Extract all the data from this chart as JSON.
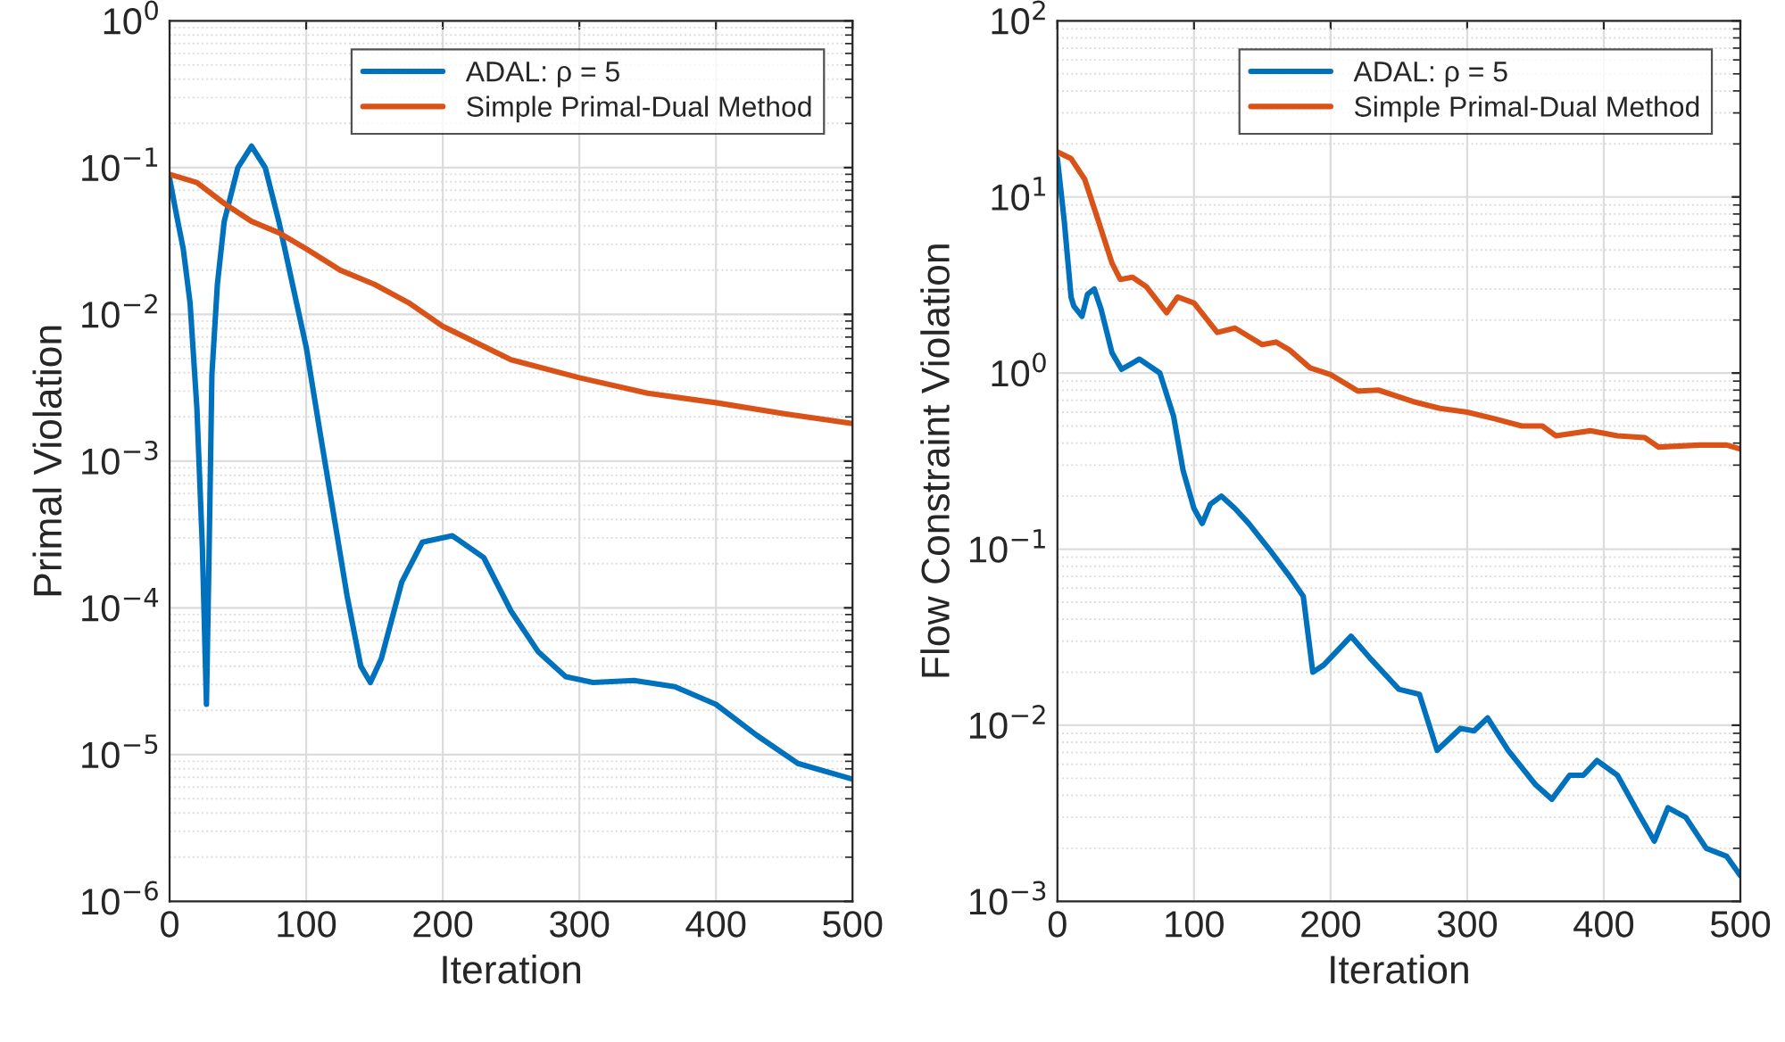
{
  "chart_data": [
    {
      "type": "line",
      "xlabel": "Iteration",
      "ylabel": "Primal Violation",
      "log": "y",
      "grid": true,
      "legend": "top right",
      "xlim": [
        0,
        500
      ],
      "xticks": [
        0,
        100,
        200,
        300,
        400,
        500
      ],
      "ylim": [
        1e-06,
        1
      ],
      "yticks": [
        {
          "value": 1e-06,
          "label": "10$^{−6}$"
        },
        {
          "value": 1e-05,
          "label": "10$^{−5}$"
        },
        {
          "value": 0.0001,
          "label": "10$^{−4}$"
        },
        {
          "value": 0.001,
          "label": "10$^{−3}$"
        },
        {
          "value": 0.01,
          "label": "10$^{−2}$"
        },
        {
          "value": 0.1,
          "label": "10$^{−1}$"
        },
        {
          "value": 1,
          "label": "10$^{0}$"
        }
      ],
      "series": [
        {
          "name": "ADAL: ρ = 5",
          "color": "#0072bd",
          "x": [
            0,
            5,
            10,
            15,
            20,
            24,
            27,
            29,
            31,
            35,
            40,
            50,
            60,
            70,
            80,
            90,
            100,
            110,
            120,
            130,
            140,
            147,
            155,
            170,
            185,
            207,
            230,
            250,
            270,
            290,
            310,
            340,
            370,
            400,
            430,
            460,
            500
          ],
          "values": [
            0.085,
            0.048,
            0.028,
            0.012,
            0.0023,
            0.00026,
            2.2e-05,
            0.00026,
            0.0039,
            0.016,
            0.043,
            0.1,
            0.14,
            0.1,
            0.043,
            0.016,
            0.006,
            0.0016,
            0.00044,
            0.00012,
            4e-05,
            3.1e-05,
            4.5e-05,
            0.00015,
            0.00028,
            0.00031,
            0.00022,
            9.5e-05,
            5e-05,
            3.4e-05,
            3.1e-05,
            3.2e-05,
            2.9e-05,
            2.2e-05,
            1.35e-05,
            8.7e-06,
            6.8e-06
          ]
        },
        {
          "name": "Simple Primal-Dual Method",
          "color": "#d95319",
          "x": [
            0,
            20,
            40,
            60,
            80,
            100,
            125,
            150,
            175,
            200,
            250,
            300,
            350,
            400,
            450,
            500
          ],
          "values": [
            0.09,
            0.079,
            0.057,
            0.043,
            0.036,
            0.028,
            0.02,
            0.016,
            0.012,
            0.0083,
            0.0049,
            0.0037,
            0.0029,
            0.0025,
            0.0021,
            0.0018
          ]
        }
      ]
    },
    {
      "type": "line",
      "xlabel": "Iteration",
      "ylabel": "Flow Constraint Violation",
      "log": "y",
      "grid": true,
      "legend": "top right",
      "xlim": [
        0,
        500
      ],
      "xticks": [
        0,
        100,
        200,
        300,
        400,
        500
      ],
      "ylim": [
        0.001,
        100
      ],
      "yticks": [
        {
          "value": 0.001,
          "label": "10$^{−3}$"
        },
        {
          "value": 0.01,
          "label": "10$^{−2}$"
        },
        {
          "value": 0.1,
          "label": "10$^{−1}$"
        },
        {
          "value": 1,
          "label": "10$^{0}$"
        },
        {
          "value": 10,
          "label": "10$^{1}$"
        },
        {
          "value": 100,
          "label": "10$^{2}$"
        }
      ],
      "series": [
        {
          "name": "ADAL: ρ = 5",
          "color": "#0072bd",
          "x": [
            0,
            5,
            10,
            12,
            18,
            22,
            27,
            32,
            40,
            47,
            60,
            75,
            85,
            92,
            100,
            106,
            112,
            120,
            130,
            140,
            155,
            170,
            180,
            187,
            195,
            215,
            230,
            250,
            265,
            278,
            295,
            305,
            315,
            330,
            350,
            362,
            375,
            385,
            395,
            410,
            425,
            437,
            447,
            460,
            475,
            490,
            500
          ],
          "values": [
            16.5,
            7.3,
            2.7,
            2.4,
            2.1,
            2.8,
            3.0,
            2.3,
            1.3,
            1.05,
            1.2,
            1.0,
            0.57,
            0.28,
            0.17,
            0.14,
            0.18,
            0.2,
            0.17,
            0.14,
            0.1,
            0.07,
            0.054,
            0.02,
            0.022,
            0.032,
            0.0235,
            0.016,
            0.015,
            0.0072,
            0.0096,
            0.0093,
            0.011,
            0.0072,
            0.0046,
            0.0038,
            0.0052,
            0.0052,
            0.0063,
            0.0052,
            0.0032,
            0.0022,
            0.0034,
            0.003,
            0.002,
            0.0018,
            0.0014
          ]
        },
        {
          "name": "Simple Primal-Dual Method",
          "color": "#d95319",
          "x": [
            0,
            10,
            20,
            30,
            40,
            46,
            55,
            65,
            80,
            88,
            100,
            117,
            130,
            150,
            160,
            170,
            185,
            200,
            220,
            235,
            260,
            280,
            300,
            320,
            340,
            355,
            365,
            390,
            410,
            430,
            440,
            470,
            490,
            500
          ],
          "values": [
            18,
            16.5,
            12.6,
            7.3,
            4.2,
            3.4,
            3.5,
            3.1,
            2.2,
            2.7,
            2.5,
            1.7,
            1.8,
            1.45,
            1.5,
            1.35,
            1.07,
            0.98,
            0.79,
            0.8,
            0.69,
            0.63,
            0.6,
            0.55,
            0.5,
            0.5,
            0.44,
            0.47,
            0.44,
            0.43,
            0.38,
            0.39,
            0.39,
            0.37
          ]
        }
      ]
    }
  ]
}
